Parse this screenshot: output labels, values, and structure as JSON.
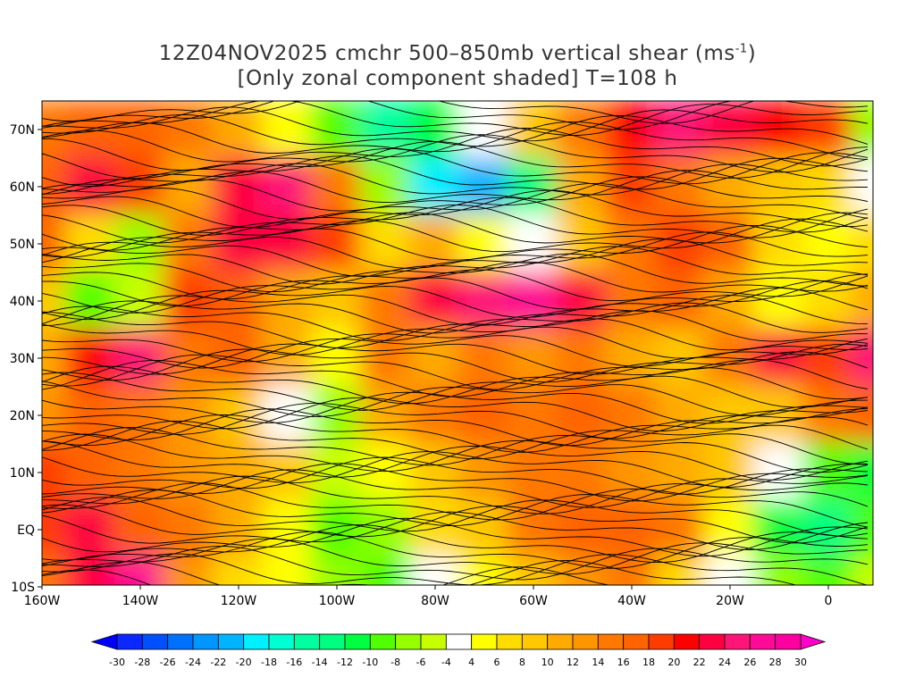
{
  "title": {
    "line1_main": "12Z04NOV2025 cmchr 500–850mb vertical shear (ms",
    "line1_sup": "-1",
    "line1_end": ")",
    "line2": "[Only zonal component shaded] T=108 h"
  },
  "axes": {
    "lon_labels": [
      {
        "lon": -160,
        "label": "160W"
      },
      {
        "lon": -140,
        "label": "140W"
      },
      {
        "lon": -120,
        "label": "120W"
      },
      {
        "lon": -100,
        "label": "100W"
      },
      {
        "lon": -80,
        "label": "80W"
      },
      {
        "lon": -60,
        "label": "60W"
      },
      {
        "lon": -40,
        "label": "40W"
      },
      {
        "lon": -20,
        "label": "20W"
      },
      {
        "lon": 0,
        "label": "0"
      }
    ],
    "lat_labels": [
      {
        "lat": 70,
        "label": "70N"
      },
      {
        "lat": 60,
        "label": "60N"
      },
      {
        "lat": 50,
        "label": "50N"
      },
      {
        "lat": 40,
        "label": "40N"
      },
      {
        "lat": 30,
        "label": "30N"
      },
      {
        "lat": 20,
        "label": "20N"
      },
      {
        "lat": 10,
        "label": "10N"
      },
      {
        "lat": 0,
        "label": "EQ"
      },
      {
        "lat": -10,
        "label": "10S"
      }
    ],
    "lon_range": [
      -160,
      10
    ],
    "lat_range": [
      -10,
      75
    ]
  },
  "field": {
    "units": "m/s",
    "lons": [
      -160,
      -150,
      -140,
      -130,
      -120,
      -110,
      -100,
      -90,
      -80,
      -70,
      -60,
      -50,
      -40,
      -30,
      -20,
      -10,
      0,
      10
    ],
    "lats": [
      70,
      60,
      50,
      40,
      30,
      20,
      10,
      0,
      -10
    ],
    "u_shear": [
      [
        14,
        16,
        16,
        14,
        10,
        4,
        -10,
        -16,
        -12,
        0,
        8,
        14,
        20,
        24,
        22,
        20,
        18,
        -8
      ],
      [
        16,
        22,
        18,
        10,
        22,
        24,
        14,
        -8,
        -20,
        -22,
        -14,
        10,
        18,
        14,
        10,
        8,
        6,
        0
      ],
      [
        16,
        6,
        -8,
        14,
        22,
        22,
        18,
        6,
        10,
        4,
        0,
        8,
        14,
        18,
        16,
        6,
        4,
        6
      ],
      [
        8,
        -10,
        -6,
        18,
        16,
        10,
        8,
        14,
        22,
        24,
        26,
        22,
        14,
        16,
        10,
        4,
        6,
        10
      ],
      [
        10,
        20,
        24,
        14,
        16,
        10,
        4,
        14,
        10,
        14,
        12,
        14,
        10,
        8,
        14,
        22,
        18,
        24
      ],
      [
        12,
        16,
        14,
        12,
        8,
        0,
        -8,
        10,
        14,
        16,
        14,
        16,
        14,
        10,
        8,
        8,
        14,
        16
      ],
      [
        18,
        16,
        14,
        12,
        10,
        8,
        -6,
        4,
        8,
        12,
        14,
        14,
        12,
        10,
        8,
        0,
        -10,
        -12
      ],
      [
        18,
        22,
        16,
        14,
        10,
        4,
        -10,
        -8,
        6,
        8,
        14,
        16,
        16,
        14,
        4,
        -12,
        -14,
        -10
      ],
      [
        14,
        22,
        26,
        12,
        6,
        4,
        -8,
        -10,
        0,
        4,
        8,
        12,
        14,
        6,
        0,
        -8,
        -10,
        -6
      ]
    ]
  },
  "colorbar": {
    "labels": [
      "-30",
      "-28",
      "-26",
      "-24",
      "-22",
      "-20",
      "-18",
      "-16",
      "-14",
      "-12",
      "-10",
      "-8",
      "-6",
      "-4",
      "4",
      "6",
      "8",
      "10",
      "12",
      "14",
      "16",
      "18",
      "20",
      "22",
      "24",
      "26",
      "28",
      "30"
    ],
    "levels": [
      -30,
      -28,
      -26,
      -24,
      -22,
      -20,
      -18,
      -16,
      -14,
      -12,
      -10,
      -8,
      -6,
      -4,
      4,
      6,
      8,
      10,
      12,
      14,
      16,
      18,
      20,
      22,
      24,
      26,
      28,
      30
    ],
    "colors": [
      "#0a28ff",
      "#0050ff",
      "#0070ff",
      "#0096ff",
      "#00b4ff",
      "#00f0ff",
      "#00ffd2",
      "#00ffa0",
      "#00ff80",
      "#00ff40",
      "#50ff00",
      "#96ff00",
      "#c8ff00",
      "#ffffff",
      "#ffff00",
      "#ffdc00",
      "#ffc800",
      "#ffaa00",
      "#ff9600",
      "#ff7800",
      "#ff6400",
      "#ff3c00",
      "#ff0000",
      "#ff0040",
      "#ff1478",
      "#ff0a96",
      "#ff00a0"
    ],
    "under_color": "#0000ff",
    "over_color": "#ff00c8"
  }
}
